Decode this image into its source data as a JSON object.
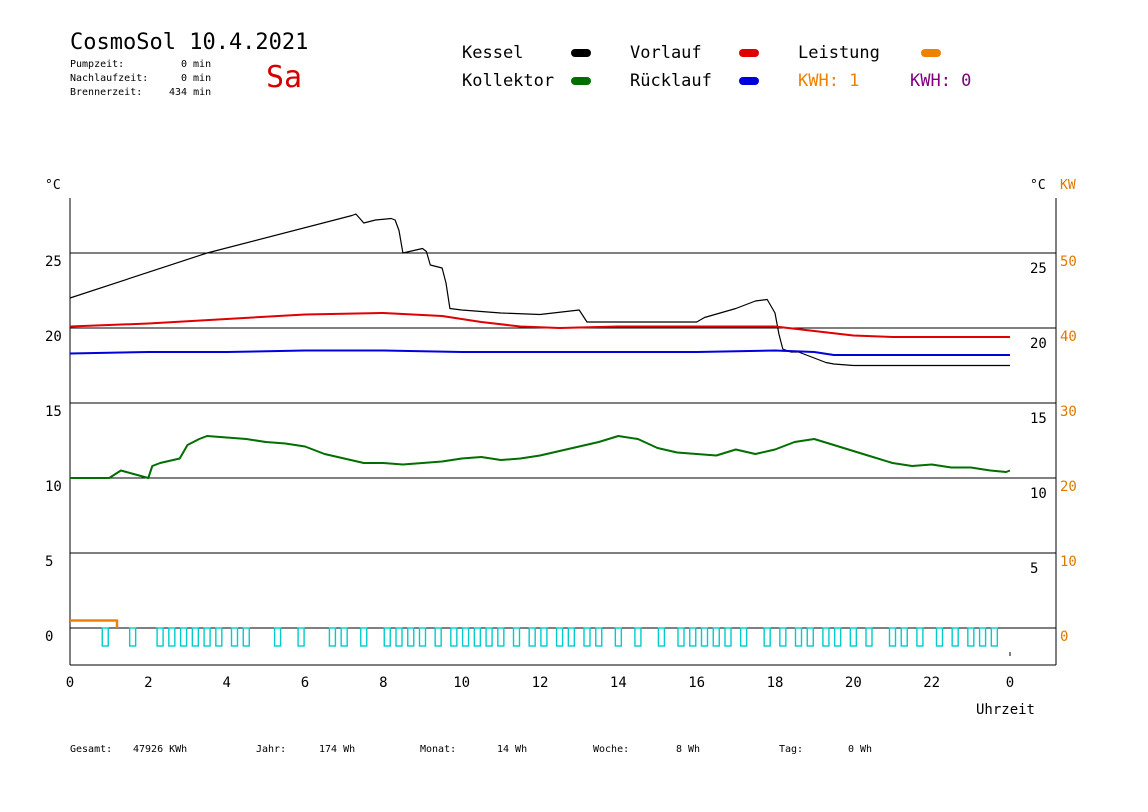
{
  "header": {
    "title": "CosmoSol 10.4.2021",
    "day": "Sa",
    "pump_label": "Pumpzeit:",
    "pump_value": "0 min",
    "overrun_label": "Nachlaufzeit:",
    "overrun_value": "0 min",
    "burner_label": "Brennerzeit:",
    "burner_value": "434 min"
  },
  "legend": {
    "kessel": "Kessel",
    "kollektor": "Kollektor",
    "vorlauf": "Vorlauf",
    "ruecklauf": "Rücklauf",
    "leistung": "Leistung",
    "kwh1": "KWH: 1",
    "kwh2": "KWH: 0"
  },
  "colors": {
    "kessel": "#000000",
    "kollektor": "#006e00",
    "vorlauf": "#e00000",
    "ruecklauf": "#0000dd",
    "leistung": "#f08000",
    "kwh1": "#f08000",
    "kwh2": "#800080",
    "pump": "#00cccc",
    "right_axis": "#e07800"
  },
  "footer": {
    "gesamt_label": "Gesamt:",
    "gesamt_value": "47926 KWh",
    "jahr_label": "Jahr:",
    "jahr_value": "174 Wh",
    "monat_label": "Monat:",
    "monat_value": "14 Wh",
    "woche_label": "Woche:",
    "woche_value": "8 Wh",
    "tag_label": "Tag:",
    "tag_value": "0 Wh"
  },
  "chart_data": {
    "type": "line",
    "xlabel": "Uhrzeit",
    "x_ticks": [
      "0",
      "2",
      "4",
      "6",
      "8",
      "10",
      "12",
      "14",
      "16",
      "18",
      "20",
      "22",
      "0"
    ],
    "xlim": [
      0,
      24
    ],
    "left_axis": {
      "unit": "°C",
      "ticks": [
        "0",
        "5",
        "10",
        "15",
        "20",
        "25"
      ],
      "ylim": [
        -2,
        29
      ]
    },
    "right_axis_1": {
      "unit": "°C",
      "ticks": [
        "5",
        "10",
        "15",
        "20",
        "25"
      ]
    },
    "right_axis_2": {
      "unit": "KW",
      "ticks": [
        "0",
        "10",
        "20",
        "30",
        "40",
        "50"
      ]
    },
    "grid_y": [
      5,
      10,
      15,
      20,
      25
    ],
    "series": [
      {
        "name": "Kessel",
        "color": "#000000",
        "x": [
          0,
          3.5,
          7.2,
          7.3,
          7.5,
          7.8,
          8.2,
          8.3,
          8.4,
          8.5,
          9.0,
          9.1,
          9.2,
          9.5,
          9.6,
          9.7,
          10.0,
          11.0,
          12.0,
          13.0,
          13.2,
          14,
          15,
          16,
          16.2,
          17,
          17.5,
          17.8,
          18.0,
          18.1,
          18.2,
          18.4,
          18.6,
          19.0,
          19.3,
          19.5,
          20,
          21,
          22,
          23,
          24
        ],
        "y": [
          22.0,
          25.0,
          27.5,
          27.6,
          27.0,
          27.2,
          27.3,
          27.2,
          26.5,
          25.0,
          25.3,
          25.1,
          24.2,
          24.0,
          23.0,
          21.3,
          21.2,
          21.0,
          20.9,
          21.2,
          20.4,
          20.4,
          20.4,
          20.4,
          20.7,
          21.3,
          21.8,
          21.9,
          21.0,
          19.6,
          18.6,
          18.4,
          18.4,
          18.0,
          17.7,
          17.6,
          17.5,
          17.5,
          17.5,
          17.5,
          17.5
        ]
      },
      {
        "name": "Vorlauf",
        "color": "#e00000",
        "x": [
          0,
          2,
          4,
          6,
          8,
          9.5,
          10.5,
          11.5,
          12.5,
          14,
          16,
          18,
          19,
          20,
          21,
          22,
          23,
          24
        ],
        "y": [
          20.1,
          20.3,
          20.6,
          20.9,
          21.0,
          20.8,
          20.4,
          20.1,
          20.0,
          20.1,
          20.1,
          20.1,
          19.8,
          19.5,
          19.4,
          19.4,
          19.4,
          19.4
        ]
      },
      {
        "name": "Rücklauf",
        "color": "#0000dd",
        "x": [
          0,
          2,
          4,
          6,
          8,
          10,
          12,
          14,
          16,
          18,
          19,
          19.5,
          20,
          21,
          22,
          23,
          24
        ],
        "y": [
          18.3,
          18.4,
          18.4,
          18.5,
          18.5,
          18.4,
          18.4,
          18.4,
          18.4,
          18.5,
          18.4,
          18.2,
          18.2,
          18.2,
          18.2,
          18.2,
          18.2
        ]
      },
      {
        "name": "Kollektor",
        "color": "#006e00",
        "x": [
          0,
          1,
          1.3,
          2,
          2.1,
          2.3,
          2.8,
          3.0,
          3.3,
          3.5,
          4.0,
          4.5,
          5.0,
          5.5,
          6.0,
          6.5,
          7.0,
          7.5,
          8.0,
          8.5,
          9.0,
          9.5,
          10.0,
          10.5,
          11.0,
          11.5,
          12.0,
          12.5,
          13.0,
          13.5,
          14.0,
          14.5,
          15.0,
          15.5,
          16.0,
          16.5,
          17.0,
          17.5,
          18.0,
          18.5,
          19.0,
          19.5,
          20.0,
          20.5,
          21.0,
          21.5,
          22.0,
          22.5,
          23.0,
          23.5,
          23.9,
          24
        ],
        "y": [
          10.0,
          10.0,
          10.5,
          10.0,
          10.8,
          11.0,
          11.3,
          12.2,
          12.6,
          12.8,
          12.7,
          12.6,
          12.4,
          12.3,
          12.1,
          11.6,
          11.3,
          11.0,
          11.0,
          10.9,
          11.0,
          11.1,
          11.3,
          11.4,
          11.2,
          11.3,
          11.5,
          11.8,
          12.1,
          12.4,
          12.8,
          12.6,
          12.0,
          11.7,
          11.6,
          11.5,
          11.9,
          11.6,
          11.9,
          12.4,
          12.6,
          12.2,
          11.8,
          11.4,
          11.0,
          10.8,
          10.9,
          10.7,
          10.7,
          10.5,
          10.4,
          10.5
        ]
      },
      {
        "name": "Leistung",
        "color": "#f08000",
        "x": [
          0,
          1.2,
          1.2
        ],
        "y": [
          0.5,
          0.5,
          0
        ]
      }
    ],
    "pump_pulses": [
      0.9,
      1.6,
      2.3,
      2.6,
      2.9,
      3.2,
      3.5,
      3.8,
      4.2,
      4.5,
      5.3,
      5.9,
      6.7,
      7.0,
      7.5,
      8.1,
      8.4,
      8.7,
      9.0,
      9.4,
      9.8,
      10.1,
      10.4,
      10.7,
      11.0,
      11.4,
      11.8,
      12.1,
      12.5,
      12.8,
      13.2,
      13.5,
      14.0,
      14.5,
      15.1,
      15.6,
      15.9,
      16.2,
      16.5,
      16.8,
      17.2,
      17.8,
      18.2,
      18.6,
      18.9,
      19.3,
      19.6,
      20.0,
      20.4,
      21.0,
      21.3,
      21.7,
      22.2,
      22.6,
      23.0,
      23.3,
      23.6
    ]
  }
}
